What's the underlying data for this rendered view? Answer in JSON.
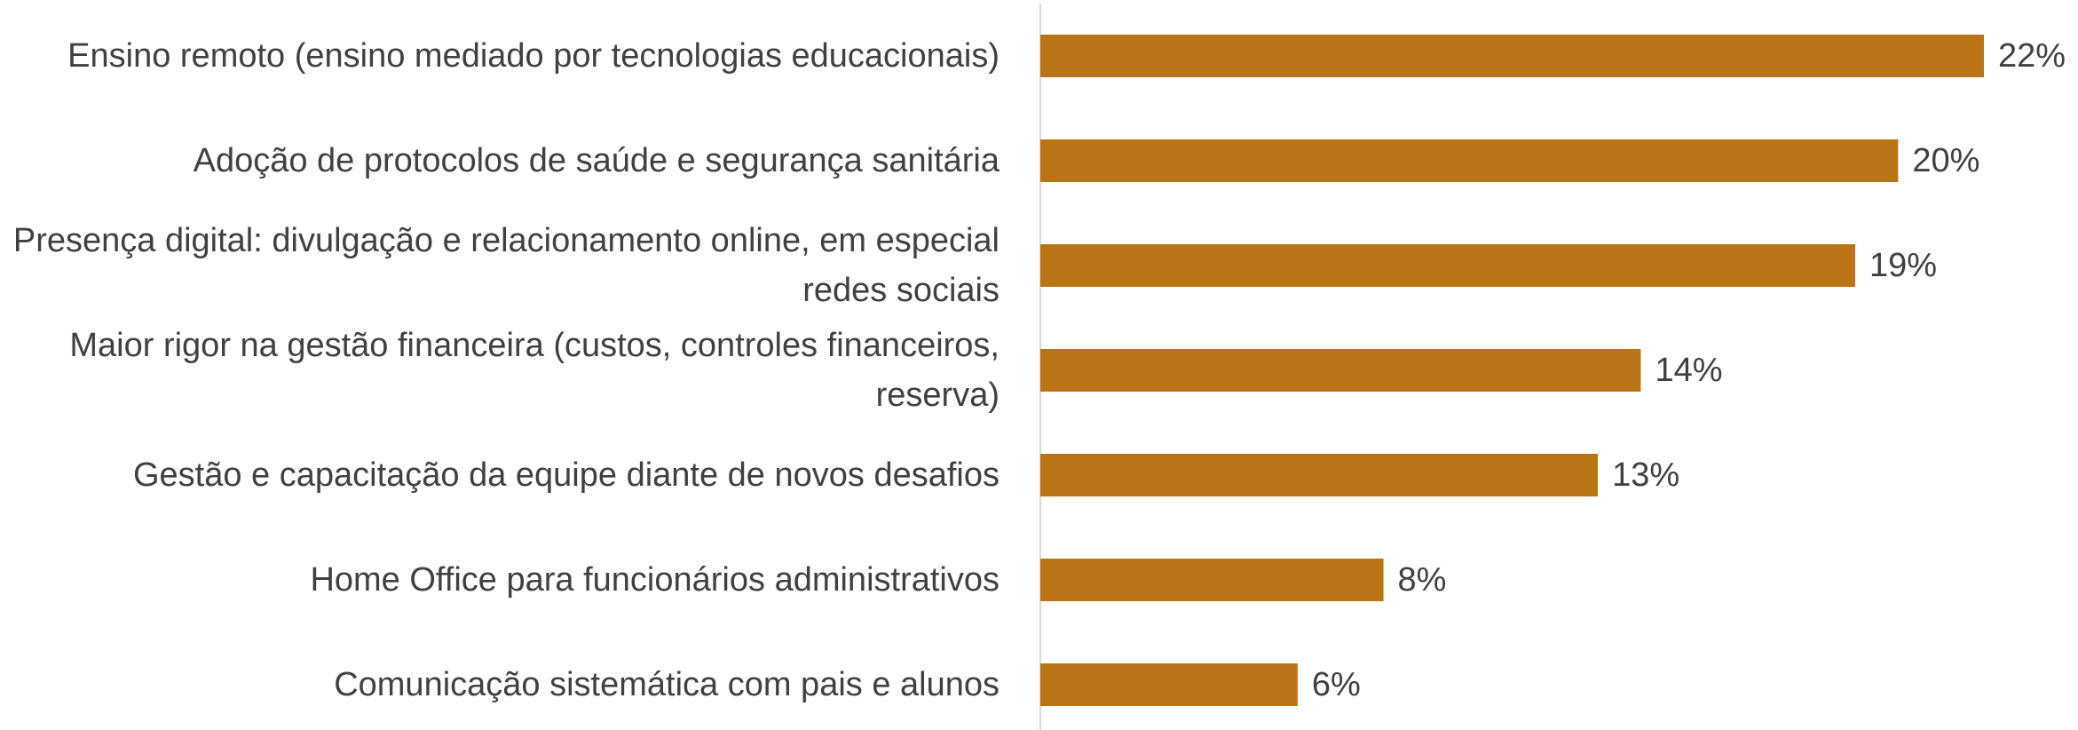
{
  "chart_data": {
    "type": "bar",
    "orientation": "horizontal",
    "categories": [
      "Ensino remoto (ensino mediado por tecnologias educacionais)",
      "Adoção de protocolos de saúde e segurança sanitária",
      "Presença digital: divulgação e relacionamento online, em especial redes sociais",
      "Maior rigor na gestão financeira (custos, controles financeiros, reserva)",
      "Gestão e capacitação da equipe diante de novos desafios",
      "Home Office para funcionários administrativos",
      "Comunicação sistemática com pais e alunos"
    ],
    "values": [
      22,
      20,
      19,
      14,
      13,
      8,
      6
    ],
    "value_labels": [
      "22%",
      "20%",
      "19%",
      "14%",
      "13%",
      "8%",
      "6%"
    ],
    "color": "#b97515"
  }
}
